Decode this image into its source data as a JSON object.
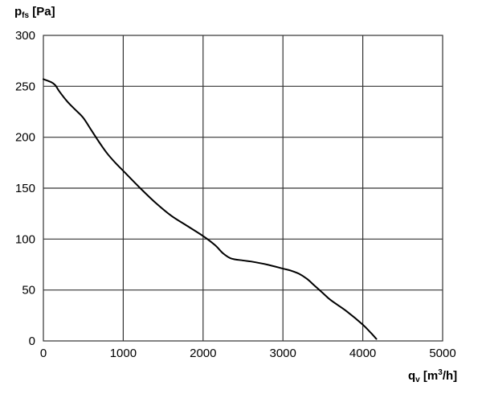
{
  "chart_data": {
    "type": "line",
    "y_title": {
      "symbol": "p",
      "subscript": "fs",
      "unit": "[Pa]"
    },
    "x_title": {
      "symbol": "q",
      "subscript": "v",
      "unit_before": "[m",
      "unit_sup": "3",
      "unit_after": "/h]"
    },
    "xlim": [
      0,
      5000
    ],
    "ylim": [
      0,
      300
    ],
    "x_ticks": [
      "0",
      "1000",
      "2000",
      "3000",
      "4000",
      "5000"
    ],
    "y_ticks": [
      "0",
      "50",
      "100",
      "150",
      "200",
      "250",
      "300"
    ],
    "grid": true,
    "line_color": "#000000",
    "grid_color": "#333333",
    "series": [
      {
        "x": [
          0,
          100,
          150,
          200,
          300,
          400,
          500,
          600,
          700,
          800,
          900,
          1000,
          1200,
          1400,
          1600,
          1800,
          2000,
          2150,
          2250,
          2350,
          2500,
          2600,
          2800,
          3000,
          3100,
          3200,
          3300,
          3400,
          3500,
          3600,
          3800,
          4000,
          4100,
          4170
        ],
        "y": [
          257,
          254,
          251,
          245,
          235,
          227,
          219,
          207,
          195,
          184,
          175,
          167,
          151,
          136,
          123,
          113,
          103,
          94,
          86,
          81,
          79,
          78,
          75,
          71,
          69,
          66,
          61,
          54,
          47,
          40,
          29,
          16,
          8,
          2
        ]
      }
    ]
  }
}
